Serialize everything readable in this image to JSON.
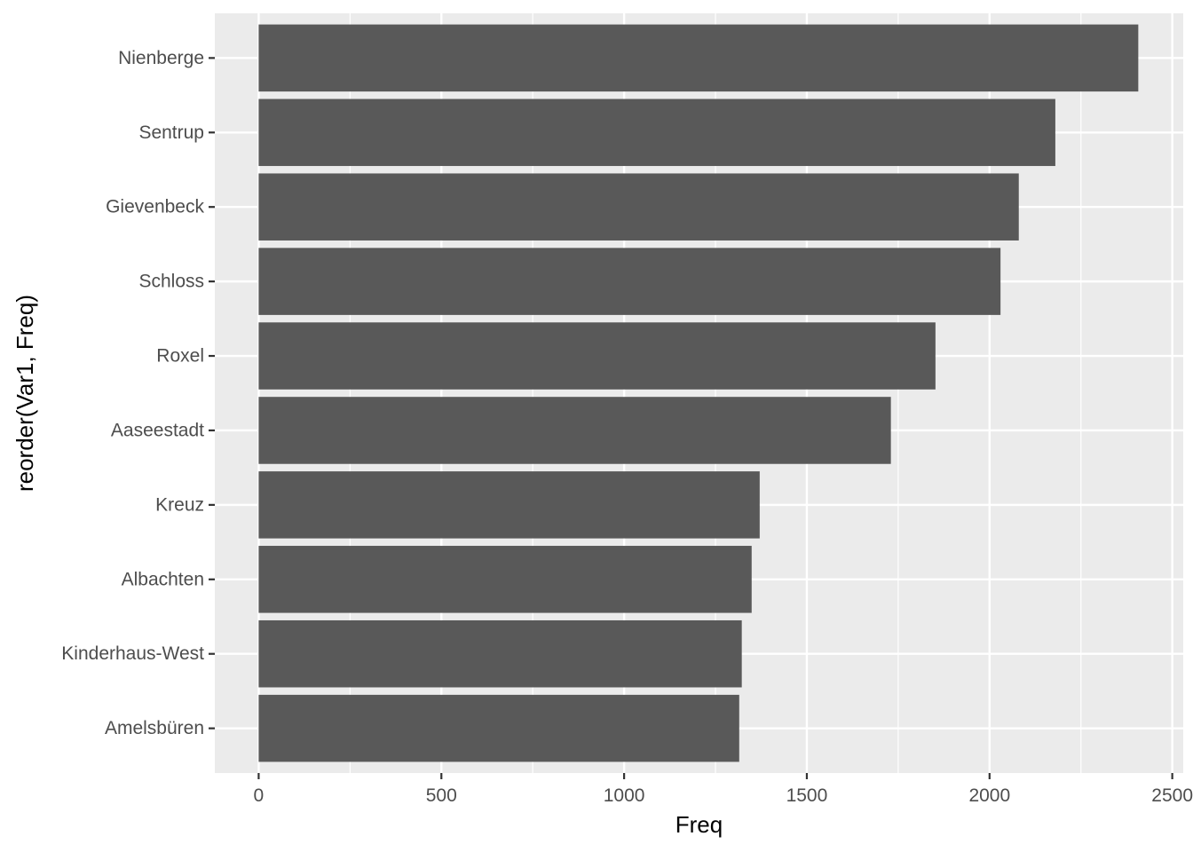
{
  "chart_data": {
    "type": "bar",
    "orientation": "horizontal",
    "categories": [
      "Nienberge",
      "Sentrup",
      "Gievenbeck",
      "Schloss",
      "Roxel",
      "Aaseestadt",
      "Kreuz",
      "Albachten",
      "Kinderhaus-West",
      "Amelsbüren"
    ],
    "values": [
      2407,
      2180,
      2080,
      2030,
      1852,
      1730,
      1371,
      1349,
      1322,
      1315
    ],
    "xlabel": "Freq",
    "ylabel": "reorder(Var1, Freq)",
    "xlim": [
      -120,
      2530
    ],
    "xticks": [
      0,
      500,
      1000,
      1500,
      2000,
      2500
    ],
    "xtick_labels": [
      "0",
      "500",
      "1000",
      "1500",
      "2000",
      "2500"
    ],
    "grid": true,
    "colors": {
      "panel_background": "#ebebeb",
      "grid_major": "#ffffff",
      "bar_fill": "#595959",
      "tick_text": "#4d4d4d",
      "tick_mark": "#333333"
    }
  }
}
